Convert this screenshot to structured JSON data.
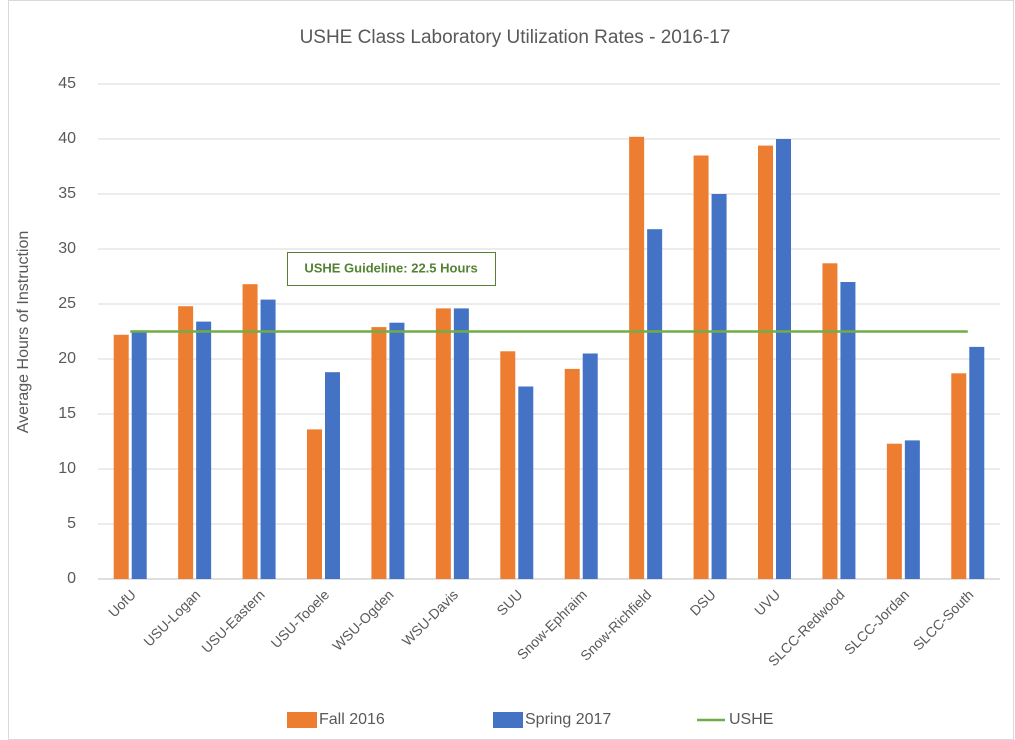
{
  "chart_data": {
    "type": "bar",
    "title": "USHE Class Laboratory Utilization Rates - 2016-17",
    "y_label": "Average Hours of Instruction",
    "annotation": "USHE Guideline: 22.5 Hours",
    "categories": [
      "UofU",
      "USU-Logan",
      "USU-Eastern",
      "USU-Tooele",
      "WSU-Ogden",
      "WSU-Davis",
      "SUU",
      "Snow-Ephraim",
      "Snow-Richfield",
      "DSU",
      "UVU",
      "SLCC-Redwood",
      "SLCC-Jordan",
      "SLCC-South"
    ],
    "series": [
      {
        "name": "Fall 2016",
        "color": "#ed7d31",
        "type": "bar",
        "values": [
          22.2,
          24.8,
          26.8,
          13.6,
          22.9,
          24.6,
          20.7,
          19.1,
          40.2,
          38.5,
          39.4,
          28.7,
          12.3,
          18.7
        ]
      },
      {
        "name": "Spring 2017",
        "color": "#4472c4",
        "type": "bar",
        "values": [
          22.6,
          23.4,
          25.4,
          18.8,
          23.3,
          24.6,
          17.5,
          20.5,
          31.8,
          35.0,
          40.0,
          27.0,
          12.6,
          21.1
        ]
      },
      {
        "name": "USHE",
        "color": "#70ad47",
        "type": "line",
        "values": [
          22.5,
          22.5,
          22.5,
          22.5,
          22.5,
          22.5,
          22.5,
          22.5,
          22.5,
          22.5,
          22.5,
          22.5,
          22.5,
          22.5
        ]
      }
    ],
    "ylim": [
      0,
      45
    ],
    "yticks": [
      0,
      5,
      10,
      15,
      20,
      25,
      30,
      35,
      40,
      45
    ],
    "grid": true
  }
}
